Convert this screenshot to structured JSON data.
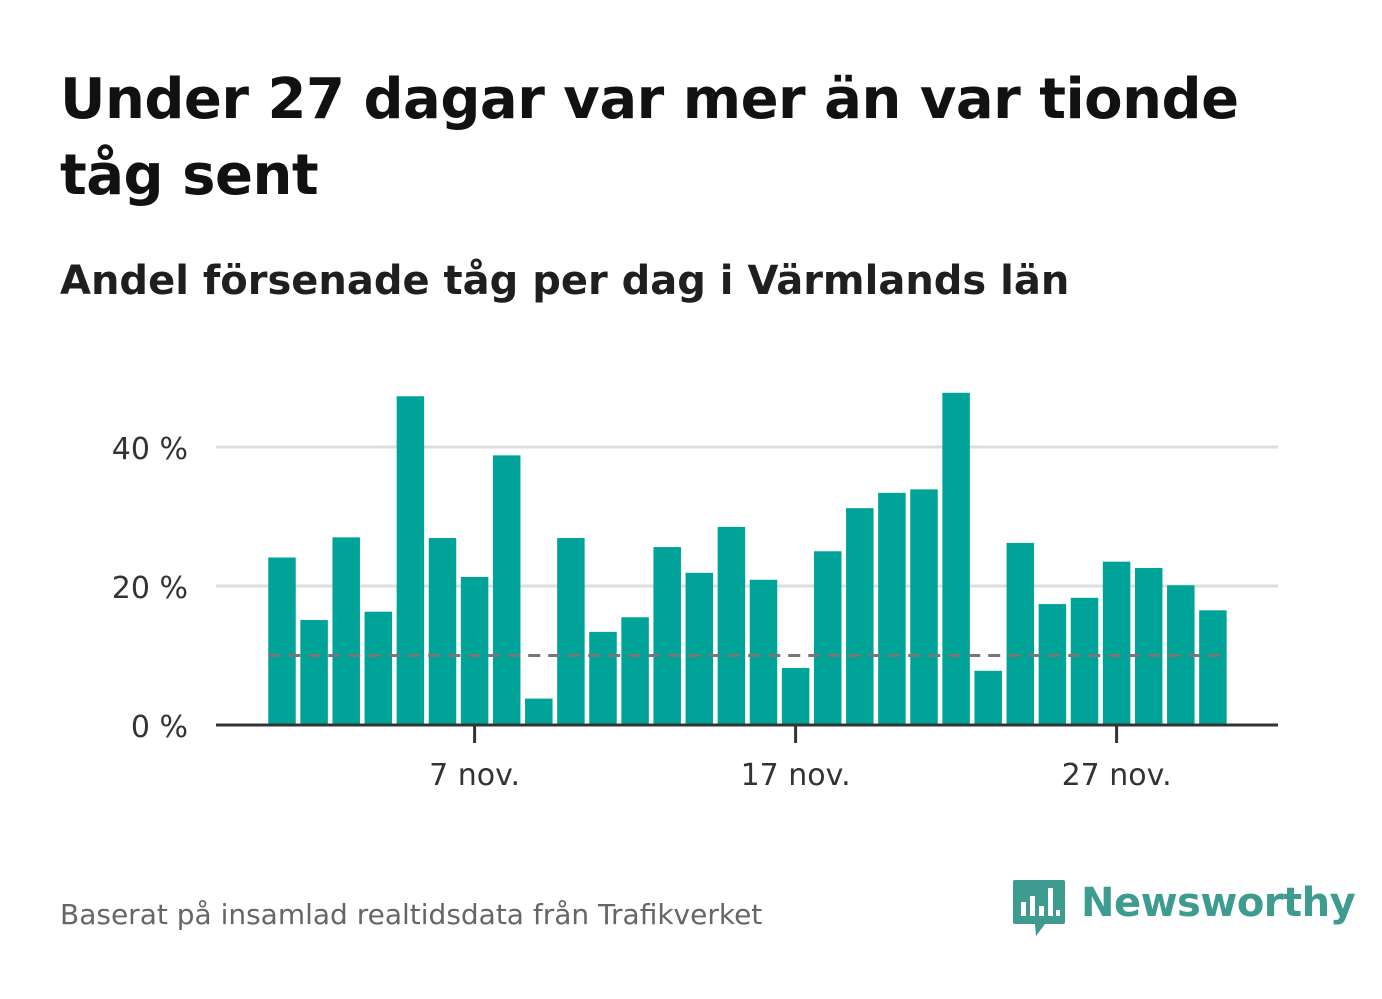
{
  "title": "Under 27 dagar var mer än var tionde tåg sent",
  "subtitle": "Andel försenade tåg per dag i Värmlands län",
  "footer": "Baserat på insamlad realtidsdata från Trafikverket",
  "logo": {
    "text": "Newsworthy",
    "icon": "newsworthy-logo-icon"
  },
  "colors": {
    "bar": "#00a398",
    "grid": "#dedede",
    "axis": "#333333",
    "reference": "#777777",
    "logo": "#3e9b90"
  },
  "chart_data": {
    "type": "bar",
    "title": "Under 27 dagar var mer än var tionde tåg sent",
    "subtitle": "Andel försenade tåg per dag i Värmlands län",
    "xlabel": "",
    "ylabel": "",
    "x": [
      "1 nov.",
      "2 nov.",
      "3 nov.",
      "4 nov.",
      "5 nov.",
      "6 nov.",
      "7 nov.",
      "8 nov.",
      "9 nov.",
      "10 nov.",
      "11 nov.",
      "12 nov.",
      "13 nov.",
      "14 nov.",
      "15 nov.",
      "16 nov.",
      "17 nov.",
      "18 nov.",
      "19 nov.",
      "20 nov.",
      "21 nov.",
      "22 nov.",
      "23 nov.",
      "24 nov.",
      "25 nov.",
      "26 nov.",
      "27 nov.",
      "28 nov.",
      "29 nov.",
      "30 nov."
    ],
    "values": [
      24.1,
      15.1,
      27.0,
      16.3,
      47.3,
      26.9,
      21.3,
      38.8,
      3.8,
      26.9,
      13.4,
      15.5,
      25.6,
      21.9,
      28.5,
      20.9,
      8.2,
      25.0,
      31.2,
      33.4,
      33.9,
      47.8,
      7.8,
      26.2,
      17.4,
      18.3,
      23.5,
      22.6,
      20.1,
      16.5
    ],
    "reference_line": 10,
    "xticks": [
      {
        "label": "7 nov.",
        "index": 6
      },
      {
        "label": "17 nov.",
        "index": 16
      },
      {
        "label": "27 nov.",
        "index": 26
      }
    ],
    "yticks": [
      {
        "label": "0 %",
        "value": 0
      },
      {
        "label": "20 %",
        "value": 20
      },
      {
        "label": "40 %",
        "value": 40
      }
    ],
    "ylim": [
      0,
      52
    ],
    "grid": true,
    "legend": "none"
  }
}
